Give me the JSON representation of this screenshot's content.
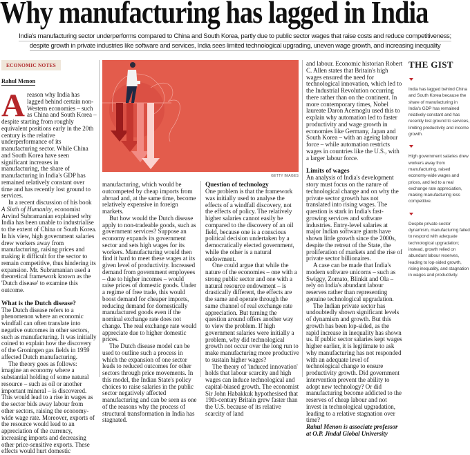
{
  "headline": "Why manufacturing has lagged in India",
  "subhead": {
    "line1": "India's manufacturing sector underperforms compared to China and South Korea, partly due to public sector wages that raise costs and reduce competitiveness;",
    "line2": "despite growth in private industries like software and services, India sees limited technological upgrading, uneven wage growth, and increasing inequality"
  },
  "section_tag": "ECONOMIC NOTES",
  "byline": "Rahul Menon",
  "image": {
    "credit": "GETTY IMAGES",
    "icon": "falling-arrows-illustration",
    "bg_color": "#e35c4c"
  },
  "accent_color": "#b5262a",
  "article": {
    "dropcap": "A",
    "col1": {
      "p1": "reason why India has lagged behind certain non-Western economies – such as China and South Korea – despite starting from roughly equivalent positions early in the 20th century is the relative underperformance of its manufacturing sector. While China and South Korea have seen significant increases in manufacturing, the share of manufacturing in India's GDP has remained relatively constant over time and has recently lost ground to services.",
      "p2a": "In a recent discussion of his book ",
      "p2_italic": "A Sixth of Humanity",
      "p2b": ", economist Arvind Subramanian explained why India has been unable to industrialise to the extent of China or South Korea. In his view, high government salaries drew workers away from manufacturing, raising prices and making it difficult for the sector to remain competitive, thus hindering its expansion. Mr. Subramanian used a theoretical framework known as the 'Dutch disease' to examine this outcome.",
      "h1": "What is the Dutch disease?",
      "p3": "The Dutch disease refers to a phenomenon where an economic windfall can often translate into negative outcomes in other sectors, such as manufacturing. It was initially coined to explain how the discovery of the Groningen gas fields in 1959 affected Dutch manufacturing.",
      "p4": "The theory goes as follows: imagine an economy where a substantial holding of some natural resource – such as oil or another important mineral – is discovered. This would lead to a rise in wages as the sector bids away labour from other sectors, raising the economy-wide wage rate. Moreover, exports of the resource would lead to an appreciation of the currency, increasing imports and decreasing other price-sensitive exports. These effects would hurt domestic"
    },
    "col2": {
      "p1": "manufacturing, which would be outcompeted by cheap imports from abroad and, at the same time, become relatively expensive in foreign markets.",
      "p2": "But how would the Dutch disease apply to non-tradeable goods, such as government services? Suppose an economy expands its government sector and sets high wages for its workers. Manufacturing would then find it hard to meet these wages at its given level of productivity. Increased demand from government employees – due to higher incomes – would raise prices of domestic goods. Under a regime of free trade, this would boost demand for cheaper imports, reducing demand for domestically manufactured goods even if the nominal exchange rate does not change. The real exchange rate would appreciate due to higher domestic prices.",
      "p3": "The Dutch disease model can be used to outline such a process in which the expansion of one sector leads to reduced outcomes for other sectors through price movements. In this model, the Indian State's policy choices to raise salaries in the public sector negatively affected manufacturing and can be seen as one of the reasons why the process of structural transformation in India has stagnated."
    },
    "col3": {
      "h1": "Question of technology",
      "p1": "One problem is that the framework was initially used to analyse the effects of a windfall discovery, not the effects of policy. The relatively higher salaries cannot easily be compared to the discovery of an oil field, because one is a conscious political decision undertaken by a democratically elected government, while the other is a natural endowment.",
      "p2": "One could argue that while the nature of the economies – one with a strong public sector and one with a natural resource endowment – is drastically different, the effects are the same and operate through the same channel of real exchange rate appreciation. But turning the question around offers another way to view the problem. If high government salaries were initially a problem, why did technological growth not occur over the long run to make manufacturing more productive to sustain higher wages?",
      "p3": "The theory of 'induced innovation' holds that labour scarcity and high wages can induce technological and capital-biased growth. The economist Sir John Habakkuk hypothesised that 19th-century Britain grew faster than the U.S. because of its relative scarcity of land"
    },
    "col4": {
      "p1": "and labour. Economic historian Robert C. Allen states that Britain's high wages ensured the need for technological innovation, which led to the Industrial Revolution occurring there rather than on the continent. In more contemporary times, Nobel laureate Daron Acemoglu used this to explain why automation led to faster productivity and wage growth in economies like Germany, Japan and South Korea – with an ageing labour force – while automation restricts wages in countries like the U.S., with a larger labour force.",
      "h1": "Limits of wages",
      "p2": "An analysis of India's development story must focus on the nature of technological change and on why the private sector growth has not translated into rising wages. The question is stark in India's fast-growing services and software industries. Entry-level salaries at major Indian software giants have shown little growth since the 2000s, despite the retreat of the State, the proliferation of markets and the rise of private sector billionaires.",
      "p3": "A case can be made that India's modern software unicorns – such as Swiggy, Zomato, Blinkit and Ola – rely on India's abundant labour reserves rather than representing genuine technological upgradation.",
      "p4": "The Indian private sector has undoubtedly shown significant levels of dynamism and growth. But this growth has been lop-sided, as the rapid increase in inequality has shown us. If public sector salaries kept wages higher earlier, it is legitimate to ask why manufacturing has not responded with an adequate level of technological change to ensure productivity growth. Did government intervention prevent the ability to adopt new technology? Or did manufacturing become addicted to the reserves of cheap labour and not invest in technological upgradation, leading to a relative stagnation over time?",
      "author_note": "Rahul Menon is associate professor at O.P. Jindal Global University"
    }
  },
  "gist": {
    "title": "THE GIST",
    "points": [
      "India has lagged behind China and South Korea because the share of manufacturing in India's GDP has remained relatively constant and has recently lost ground to services, limiting productivity and income growth.",
      "High government salaries drew workers away from manufacturing, raised economy-wide wages and prices, and led to a real exchange rate appreciation, making manufacturing less competitive.",
      "Despite private sector dynamism, manufacturing failed to respond with adequate technological upgradation; instead, growth relied on abundant labour reserves, leading to lop-sided growth, rising inequality, and stagnation in wages and productivity."
    ]
  }
}
